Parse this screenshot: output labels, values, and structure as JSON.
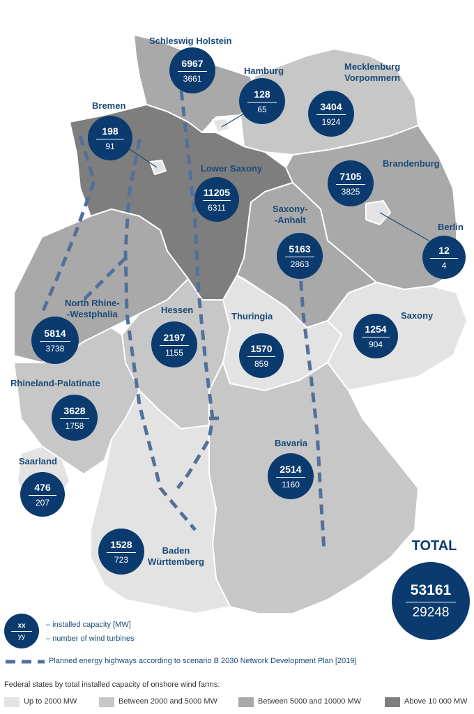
{
  "colors": {
    "tier1": "#e3e3e3",
    "tier2": "#c7c7c7",
    "tier3": "#a9a9a9",
    "tier4": "#7e7e7e",
    "bubble": "#0b3b6e",
    "highway": "#51709c"
  },
  "states": [
    {
      "id": "schleswig-holstein",
      "name": "Schleswig Holstein",
      "capacity": "6967",
      "turbines": "3661",
      "tier": 3
    },
    {
      "id": "hamburg",
      "name": "Hamburg",
      "capacity": "128",
      "turbines": "65",
      "tier": 1
    },
    {
      "id": "mecklenburg-vorpommern",
      "name": "Mecklenburg\nVorpommern",
      "capacity": "3404",
      "turbines": "1924",
      "tier": 2
    },
    {
      "id": "bremen",
      "name": "Bremen",
      "capacity": "198",
      "turbines": "91",
      "tier": 1
    },
    {
      "id": "lower-saxony",
      "name": "Lower Saxony",
      "capacity": "11205",
      "turbines": "6311",
      "tier": 4
    },
    {
      "id": "brandenburg",
      "name": "Brandenburg",
      "capacity": "7105",
      "turbines": "3825",
      "tier": 3
    },
    {
      "id": "berlin",
      "name": "Berlin",
      "capacity": "12",
      "turbines": "4",
      "tier": 1
    },
    {
      "id": "saxony-anhalt",
      "name": "Saxony-\n-Anhalt",
      "capacity": "5163",
      "turbines": "2863",
      "tier": 3
    },
    {
      "id": "north-rhine-westphalia",
      "name": "North Rhine-\n-Westphalia",
      "capacity": "5814",
      "turbines": "3738",
      "tier": 3
    },
    {
      "id": "hessen",
      "name": "Hessen",
      "capacity": "2197",
      "turbines": "1155",
      "tier": 2
    },
    {
      "id": "thuringia",
      "name": "Thuringia",
      "capacity": "1570",
      "turbines": "859",
      "tier": 1
    },
    {
      "id": "saxony",
      "name": "Saxony",
      "capacity": "1254",
      "turbines": "904",
      "tier": 1
    },
    {
      "id": "rhineland-palatinate",
      "name": "Rhineland-Palatinate",
      "capacity": "3628",
      "turbines": "1758",
      "tier": 2
    },
    {
      "id": "saarland",
      "name": "Saarland",
      "capacity": "476",
      "turbines": "207",
      "tier": 1
    },
    {
      "id": "bavaria",
      "name": "Bavaria",
      "capacity": "2514",
      "turbines": "1160",
      "tier": 2
    },
    {
      "id": "baden-wurttemberg",
      "name": "Baden\nWürttemberg",
      "capacity": "1528",
      "turbines": "723",
      "tier": 1
    }
  ],
  "total": {
    "title": "TOTAL",
    "capacity": "53161",
    "turbines": "29248"
  },
  "legend": {
    "bubble_top": "xx",
    "bubble_bottom": "yy",
    "capacity_text": "– installed capacity [MW]",
    "turbines_text": "– number of wind turbines",
    "highways_text": "Planned energy highways according to scenario B 2030 Network Development Plan [2019]",
    "category_title": "Federal states by total installed capacity of onshore wind farms:",
    "categories": [
      {
        "label": "Up to 2000 MW",
        "tier": 1
      },
      {
        "label": "Between 2000 and 5000 MW",
        "tier": 2
      },
      {
        "label": "Between 5000 and 10000 MW",
        "tier": 3
      },
      {
        "label": "Above 10 000 MW",
        "tier": 4
      }
    ]
  }
}
